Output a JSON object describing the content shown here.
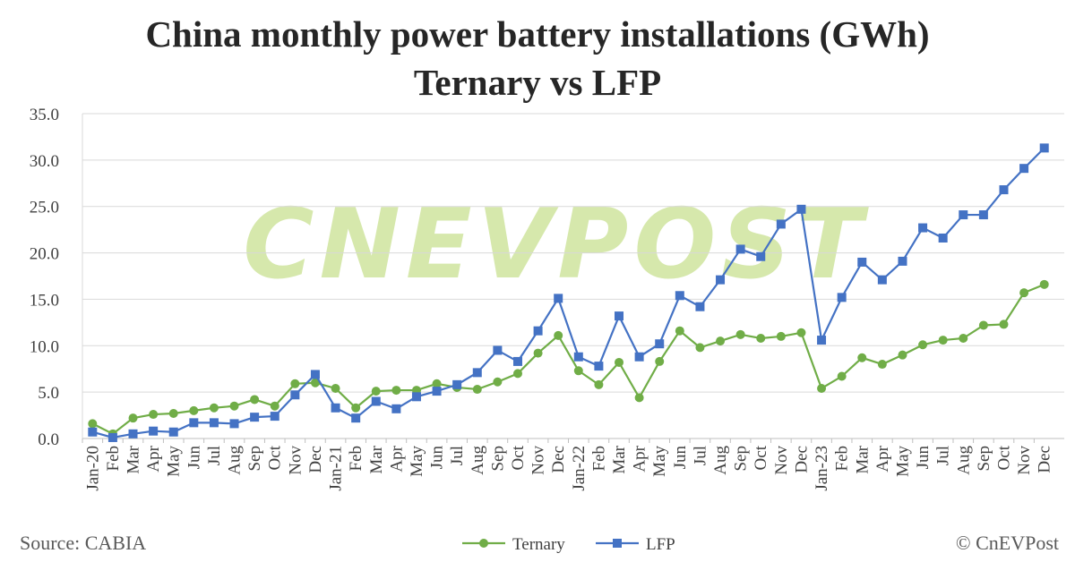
{
  "chart_data": {
    "type": "line",
    "title": [
      "China monthly power battery installations (GWh)",
      "Ternary vs LFP"
    ],
    "source": "Source: CABIA",
    "credit": "© CnEVPost",
    "watermark": "CNEVPOST",
    "categories": [
      "Jan-20",
      "Feb",
      "Mar",
      "Apr",
      "May",
      "Jun",
      "Jul",
      "Aug",
      "Sep",
      "Oct",
      "Nov",
      "Dec",
      "Jan-21",
      "Feb",
      "Mar",
      "Apr",
      "May",
      "Jun",
      "Jul",
      "Aug",
      "Sep",
      "Oct",
      "Nov",
      "Dec",
      "Jan-22",
      "Feb",
      "Mar",
      "Apr",
      "May",
      "Jun",
      "Jul",
      "Aug",
      "Sep",
      "Oct",
      "Nov",
      "Dec",
      "Jan-23",
      "Feb",
      "Mar",
      "Apr",
      "May",
      "Jun",
      "Jul",
      "Aug",
      "Sep",
      "Oct",
      "Nov",
      "Dec"
    ],
    "series": [
      {
        "name": "Ternary",
        "color": "#70ad47",
        "marker": "circle",
        "values": [
          1.6,
          0.5,
          2.2,
          2.6,
          2.7,
          3.0,
          3.3,
          3.5,
          4.2,
          3.5,
          5.9,
          6.0,
          5.4,
          3.3,
          5.1,
          5.2,
          5.2,
          5.9,
          5.5,
          5.3,
          6.1,
          7.0,
          9.2,
          11.1,
          7.3,
          5.8,
          8.2,
          4.4,
          8.3,
          11.6,
          9.8,
          10.5,
          11.2,
          10.8,
          11.0,
          11.4,
          5.4,
          6.7,
          8.7,
          8.0,
          9.0,
          10.1,
          10.6,
          10.8,
          12.2,
          12.3,
          15.7,
          16.6
        ]
      },
      {
        "name": "LFP",
        "color": "#4472c4",
        "marker": "square",
        "values": [
          0.7,
          0.1,
          0.5,
          0.8,
          0.7,
          1.7,
          1.7,
          1.6,
          2.3,
          2.4,
          4.7,
          6.9,
          3.3,
          2.2,
          4.0,
          3.2,
          4.5,
          5.1,
          5.8,
          7.1,
          9.5,
          8.3,
          11.6,
          15.1,
          8.8,
          7.8,
          13.2,
          8.8,
          10.2,
          15.4,
          14.2,
          17.1,
          20.4,
          19.6,
          23.1,
          24.7,
          10.6,
          15.2,
          19.0,
          17.1,
          19.1,
          22.7,
          21.6,
          24.1,
          24.1,
          26.8,
          29.1,
          31.3
        ]
      }
    ],
    "ylim": [
      0,
      35
    ],
    "yticks": [
      {
        "value": 0,
        "label": "0.0"
      },
      {
        "value": 5,
        "label": "5.0"
      },
      {
        "value": 10,
        "label": "10.0"
      },
      {
        "value": 15,
        "label": "15.0"
      },
      {
        "value": 20,
        "label": "20.0"
      },
      {
        "value": 25,
        "label": "25.0"
      },
      {
        "value": 30,
        "label": "30.0"
      },
      {
        "value": 35,
        "label": "35.0"
      }
    ],
    "grid": true,
    "legend": "bottom"
  }
}
